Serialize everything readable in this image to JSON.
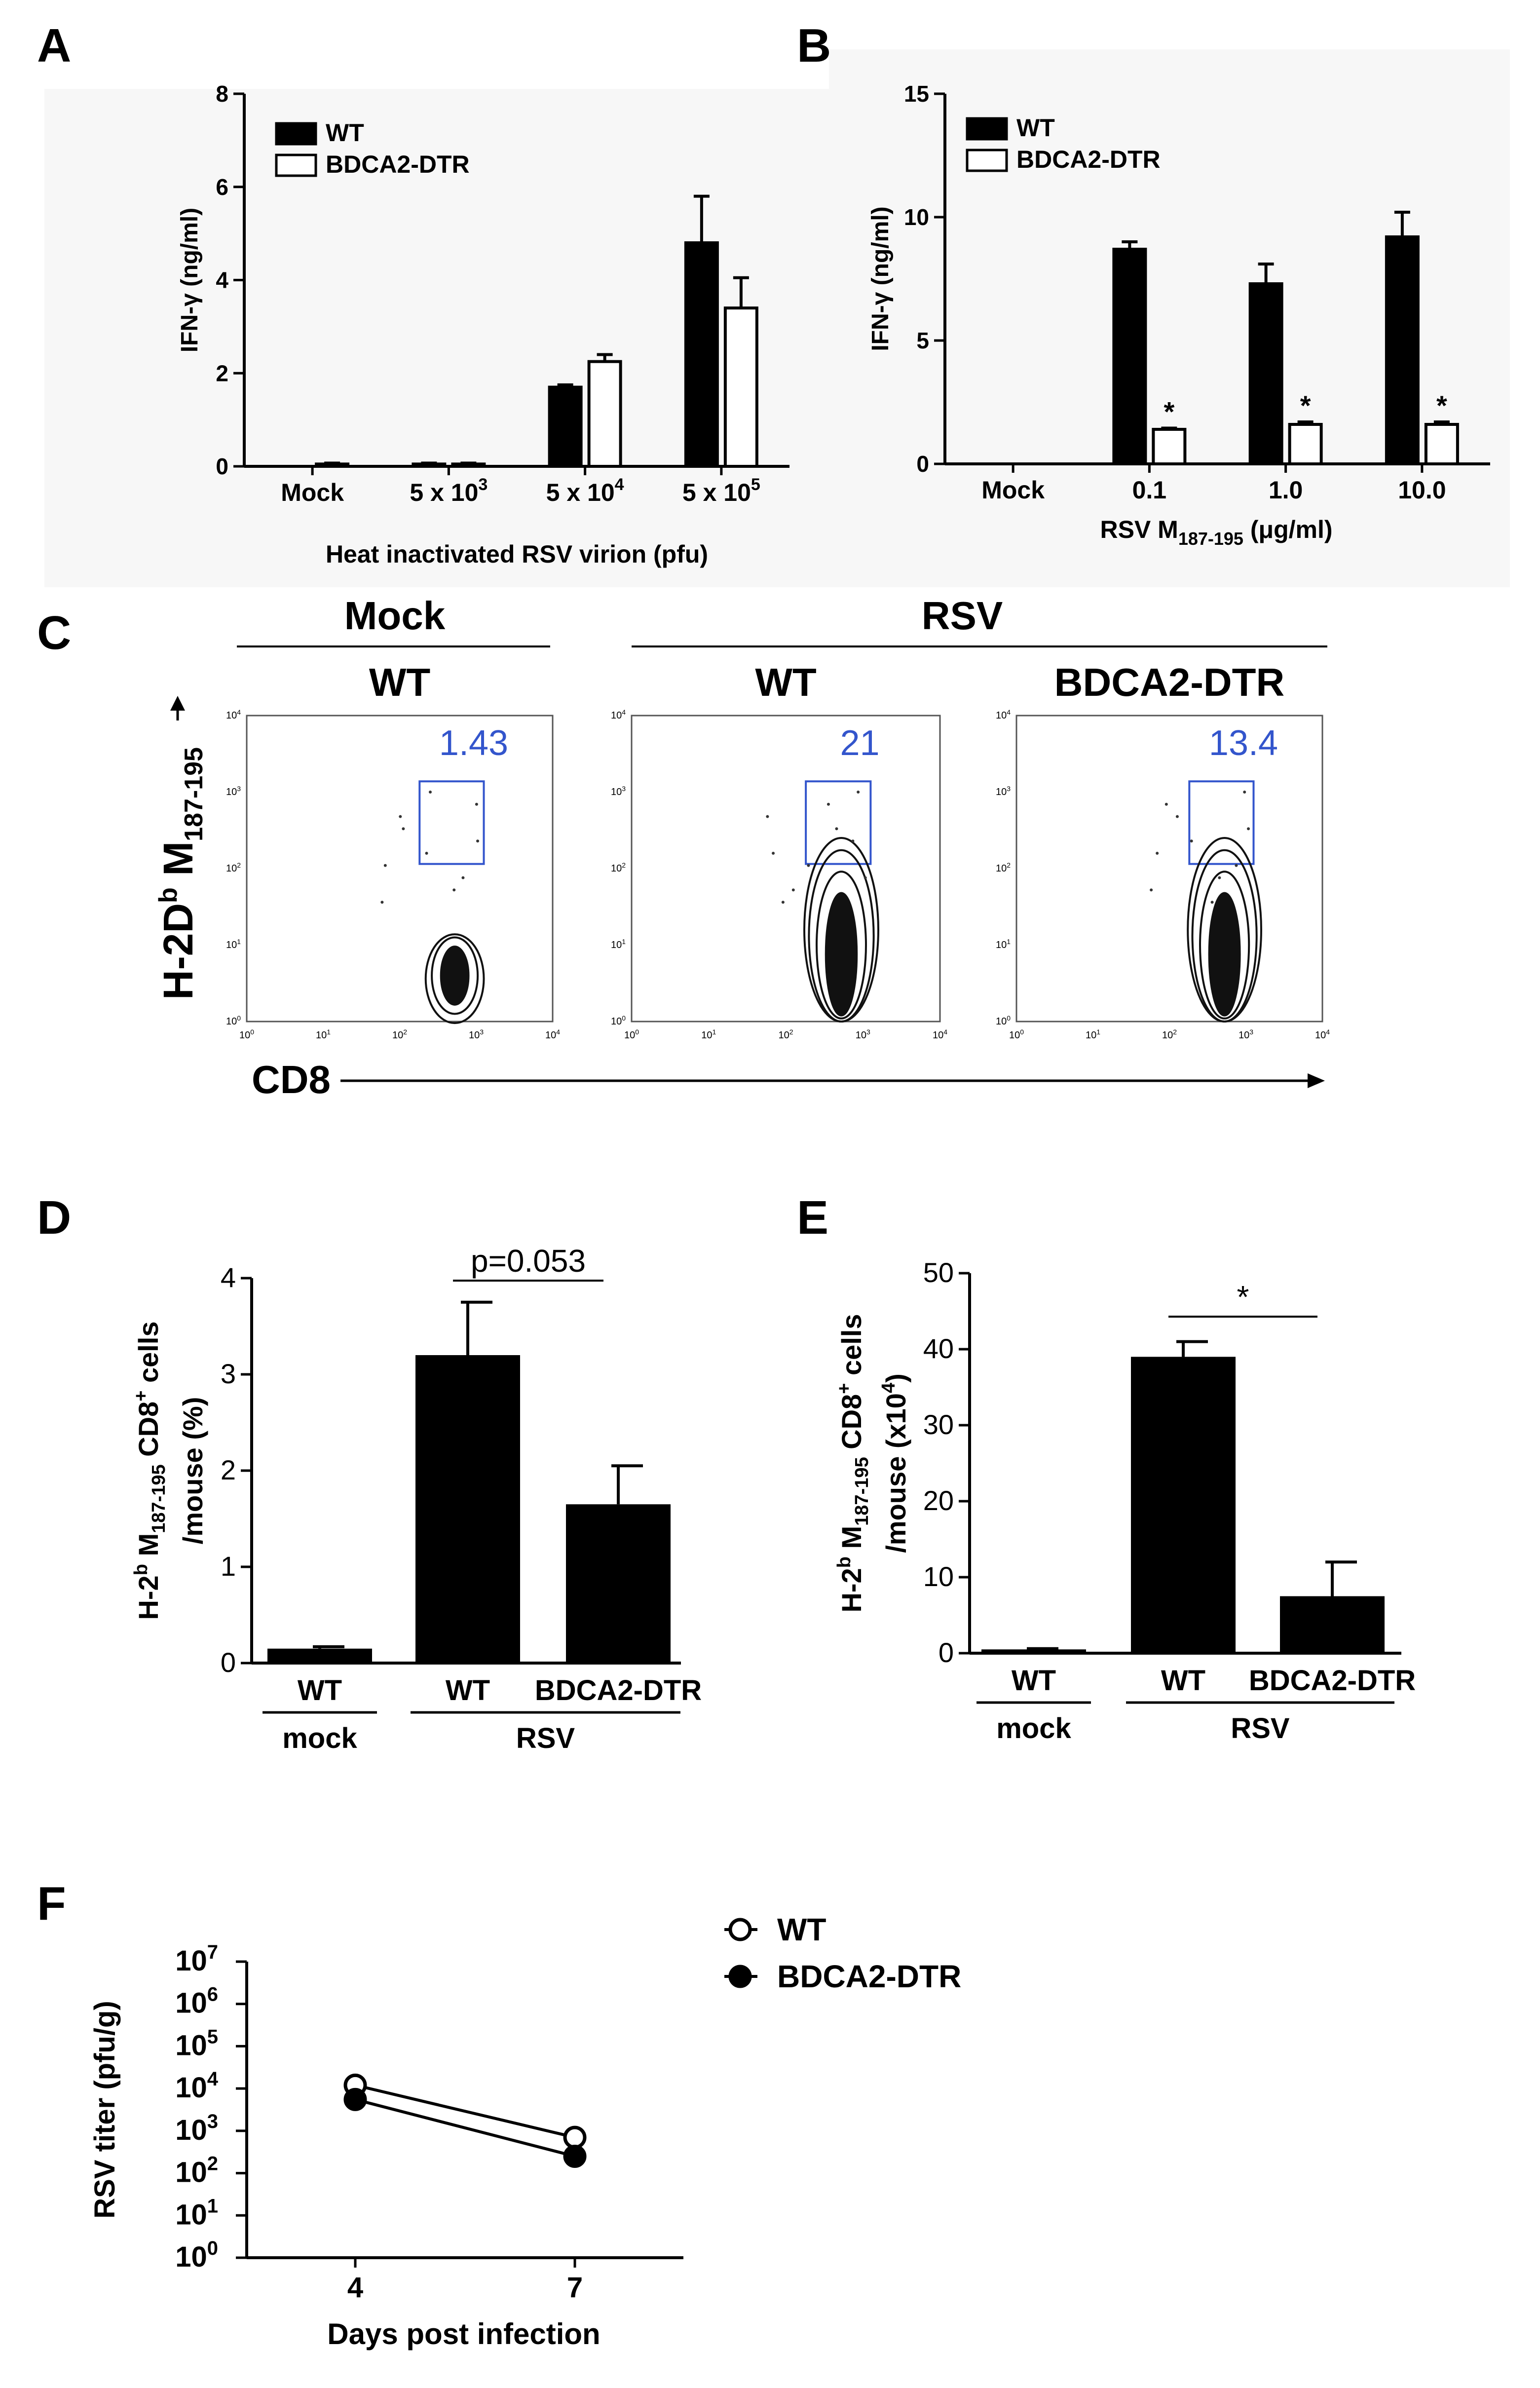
{
  "panels": {
    "A": {
      "letter": "A"
    },
    "B": {
      "letter": "B"
    },
    "C": {
      "letter": "C"
    },
    "D": {
      "letter": "D"
    },
    "E": {
      "letter": "E"
    },
    "F": {
      "letter": "F"
    }
  },
  "colors": {
    "wt": "#000000",
    "bdca2": "#ffffff",
    "gate": "#3355cc",
    "axis": "#000000",
    "panel_bg": "#f7f7f7"
  },
  "chart_data": [
    {
      "id": "A",
      "type": "bar",
      "ylabel": "IFN-γ (ng/ml)",
      "xlabel": "Heat inactivated RSV virion (pfu)",
      "ylim": [
        0,
        8
      ],
      "yticks": [
        0,
        2,
        4,
        6,
        8
      ],
      "categories": [
        {
          "base": "Mock",
          "exp": ""
        },
        {
          "base": "5 x 10",
          "exp": "3"
        },
        {
          "base": "5 x 10",
          "exp": "4"
        },
        {
          "base": "5 x 10",
          "exp": "5"
        }
      ],
      "legend": [
        "WT",
        "BDCA2-DTR"
      ],
      "series": [
        {
          "name": "WT",
          "values": [
            0,
            0.05,
            1.7,
            4.8
          ],
          "errors": [
            0,
            0.02,
            0.05,
            1.0
          ],
          "stars": [
            "",
            "",
            "",
            ""
          ]
        },
        {
          "name": "BDCA2-DTR",
          "values": [
            0.05,
            0.05,
            2.25,
            3.4
          ],
          "errors": [
            0.02,
            0.02,
            0.15,
            0.65
          ],
          "stars": [
            "",
            "",
            "",
            ""
          ]
        }
      ]
    },
    {
      "id": "B",
      "type": "bar",
      "ylabel": "IFN-γ (ng/ml)",
      "xlabel_base": "RSV M",
      "xlabel_sub": "187-195",
      "xlabel_tail": " (μg/ml)",
      "ylim": [
        0,
        15
      ],
      "yticks": [
        0,
        5,
        10,
        15
      ],
      "categories": [
        {
          "base": "Mock",
          "exp": ""
        },
        {
          "base": "0.1",
          "exp": ""
        },
        {
          "base": "1.0",
          "exp": ""
        },
        {
          "base": "10.0",
          "exp": ""
        }
      ],
      "legend": [
        "WT",
        "BDCA2-DTR"
      ],
      "series": [
        {
          "name": "WT",
          "values": [
            0,
            8.7,
            7.3,
            9.2
          ],
          "errors": [
            0,
            0.3,
            0.8,
            1.0
          ],
          "stars": [
            "",
            "",
            "",
            ""
          ]
        },
        {
          "name": "BDCA2-DTR",
          "values": [
            0,
            1.4,
            1.6,
            1.6
          ],
          "errors": [
            0,
            0.05,
            0.1,
            0.1
          ],
          "stars": [
            "",
            "*",
            "*",
            "*"
          ]
        }
      ]
    },
    {
      "id": "D",
      "type": "bar",
      "ylabel_line1": "H-2^b M_187-195 CD8^+ cells",
      "ylabel_line2": "/mouse (%)",
      "ylim": [
        0,
        4
      ],
      "yticks": [
        0,
        1,
        2,
        3,
        4
      ],
      "categories": [
        "WT",
        "WT",
        "BDCA2-DTR"
      ],
      "values": [
        0.15,
        3.2,
        1.65
      ],
      "errors": [
        0.02,
        0.55,
        0.4
      ],
      "groups": [
        {
          "label": "mock",
          "span": [
            0,
            0
          ]
        },
        {
          "label": "RSV",
          "span": [
            1,
            2
          ]
        }
      ],
      "annotation": {
        "text": "p=0.053",
        "from": 1,
        "to": 2
      }
    },
    {
      "id": "E",
      "type": "bar",
      "ylabel_line1": "H-2^b M_187-195 CD8^+ cells",
      "ylabel_line2": "/mouse (x10^4)",
      "ylim": [
        0,
        50
      ],
      "yticks": [
        0,
        10,
        20,
        30,
        40,
        50
      ],
      "categories": [
        "WT",
        "WT",
        "BDCA2-DTR"
      ],
      "values": [
        0.5,
        39,
        7.5
      ],
      "errors": [
        0.1,
        2.0,
        4.5
      ],
      "groups": [
        {
          "label": "mock",
          "span": [
            0,
            0
          ]
        },
        {
          "label": "RSV",
          "span": [
            1,
            2
          ]
        }
      ],
      "annotation": {
        "text": "*",
        "from": 1,
        "to": 2
      }
    },
    {
      "id": "F",
      "type": "line",
      "ylabel": "RSV titer (pfu/g)",
      "xlabel": "Days post infection",
      "yscale": "log10",
      "ylim_exp": [
        0,
        7
      ],
      "x_ticks": [
        4,
        7
      ],
      "legend": [
        "WT",
        "BDCA2-DTR"
      ],
      "series": [
        {
          "name": "WT",
          "x": [
            4,
            7
          ],
          "values": [
            12000,
            700
          ],
          "marker": "open-circle"
        },
        {
          "name": "BDCA2-DTR",
          "x": [
            4,
            7
          ],
          "values": [
            5500,
            250
          ],
          "marker": "filled-circle"
        }
      ]
    }
  ],
  "flow": {
    "group_labels": [
      "Mock",
      "RSV"
    ],
    "yaxis": {
      "base": "H-2D",
      "sup": "b",
      "mid": " M",
      "sub": "187-195"
    },
    "xaxis": "CD8",
    "tick_base": "10",
    "tick_exps": [
      "0",
      "1",
      "2",
      "3",
      "4"
    ],
    "plots": [
      {
        "title": "WT",
        "percent": "1.43"
      },
      {
        "title": "WT",
        "percent": "21"
      },
      {
        "title": "BDCA2-DTR",
        "percent": "13.4"
      }
    ]
  }
}
